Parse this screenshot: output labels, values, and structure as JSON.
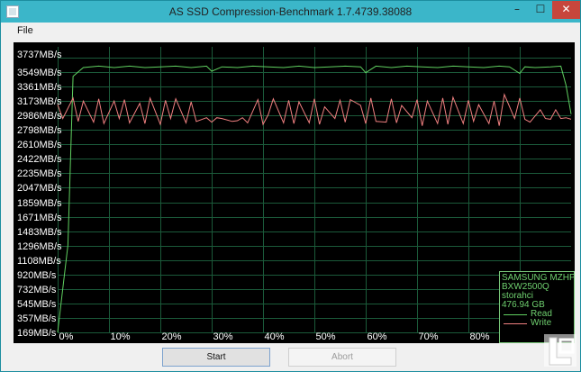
{
  "window": {
    "title": "AS SSD Compression-Benchmark 1.7.4739.38088",
    "controls": {
      "minimize": "–",
      "maximize": "☐",
      "close": "✕"
    }
  },
  "menu": {
    "file": "File"
  },
  "colors": {
    "read": "#60d060",
    "write": "#f08080",
    "grid": "#1b5a3a",
    "background": "#000000",
    "titlebar": "#3bb6c9"
  },
  "chart_data": {
    "type": "line",
    "y_tick_labels": [
      "3737MB/s",
      "3549MB/s",
      "3361MB/s",
      "3173MB/s",
      "2986MB/s",
      "2798MB/s",
      "2610MB/s",
      "2422MB/s",
      "2235MB/s",
      "2047MB/s",
      "1859MB/s",
      "1671MB/s",
      "1483MB/s",
      "1296MB/s",
      "1108MB/s",
      "920MB/s",
      "732MB/s",
      "545MB/s",
      "357MB/s",
      "169MB/s"
    ],
    "x_tick_labels": [
      "0%",
      "10%",
      "20%",
      "30%",
      "40%",
      "50%",
      "60%",
      "70%",
      "80%",
      "90%"
    ],
    "xlim": [
      0,
      100
    ],
    "ylim": [
      0,
      3925
    ],
    "grid": true,
    "legend_position": "bottom-right",
    "series": [
      {
        "name": "Read",
        "x": [
          0,
          2,
          3,
          5,
          8,
          11,
          14,
          17,
          20,
          23,
          26,
          29,
          30,
          32,
          35,
          38,
          41,
          44,
          47,
          50,
          53,
          56,
          59,
          60,
          62,
          65,
          68,
          71,
          74,
          77,
          80,
          83,
          86,
          88,
          90,
          91,
          93,
          96,
          98,
          99,
          100
        ],
        "y": [
          0,
          1200,
          3520,
          3640,
          3660,
          3640,
          3660,
          3640,
          3650,
          3660,
          3640,
          3660,
          3590,
          3650,
          3640,
          3660,
          3650,
          3640,
          3660,
          3640,
          3650,
          3660,
          3650,
          3570,
          3660,
          3640,
          3660,
          3650,
          3640,
          3660,
          3650,
          3640,
          3660,
          3650,
          3560,
          3650,
          3640,
          3650,
          3660,
          3400,
          3000
        ]
      },
      {
        "name": "Write",
        "x": [
          0,
          1,
          3,
          4,
          5,
          7,
          8,
          9,
          11,
          12,
          13,
          14,
          16,
          17,
          18,
          20,
          21,
          22,
          23,
          25,
          26,
          27,
          29,
          30,
          31,
          32,
          34,
          35,
          36,
          37,
          39,
          40,
          41,
          42,
          44,
          45,
          46,
          47,
          49,
          50,
          51,
          52,
          54,
          55,
          56,
          57,
          59,
          60,
          61,
          62,
          64,
          65,
          66,
          67,
          69,
          70,
          71,
          72,
          74,
          75,
          76,
          77,
          79,
          80,
          81,
          82,
          84,
          85,
          86,
          87,
          89,
          90,
          91,
          92,
          94,
          95,
          96,
          97,
          98,
          99,
          100
        ],
        "y": [
          3130,
          2940,
          3220,
          2900,
          3180,
          2890,
          3210,
          2870,
          3180,
          2940,
          3200,
          2880,
          3150,
          2870,
          3220,
          2860,
          3190,
          2940,
          3210,
          2880,
          3170,
          2900,
          2950,
          2890,
          2950,
          2940,
          2900,
          2910,
          2950,
          2880,
          3200,
          2860,
          2990,
          3210,
          2880,
          3190,
          2870,
          3170,
          2880,
          3210,
          2860,
          3100,
          2940,
          3190,
          2890,
          3200,
          3120,
          2870,
          3220,
          2900,
          2890,
          3210,
          2880,
          3120,
          2950,
          3200,
          2840,
          3180,
          2870,
          3220,
          2860,
          3230,
          2870,
          3190,
          2900,
          3130,
          2870,
          3180,
          2840,
          3270,
          2940,
          3220,
          2930,
          2890,
          3060,
          2940,
          2930,
          3060,
          2940,
          2950,
          2930
        ]
      }
    ]
  },
  "legend": {
    "device": "SAMSUNG MZHPV",
    "firmware": "BXW2500Q",
    "driver": "storahci",
    "size": "476.94 GB",
    "read_label": "Read",
    "write_label": "Write"
  },
  "buttons": {
    "start": "Start",
    "abort": "Abort"
  },
  "watermark": {
    "name": "legit-reviews-logo"
  }
}
